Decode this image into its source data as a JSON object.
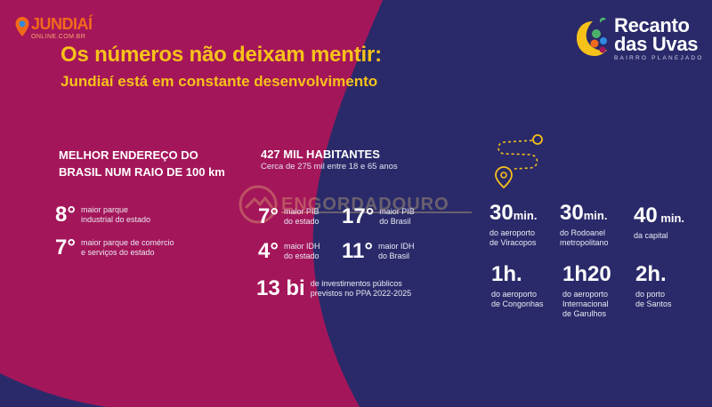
{
  "site_logo": {
    "name": "JUNDIAÍ",
    "sub": "ONLINE.COM.BR"
  },
  "title": "Os números não deixam mentir:",
  "subtitle": "Jundiaí está em constante desenvolvimento",
  "brand": {
    "line1": "Recanto",
    "line2": "das Uvas",
    "tagline": "BAIRRO PLANEJADO"
  },
  "watermark": "ENGORDADOURO",
  "colors": {
    "magenta": "#a4165a",
    "navy": "#2a2a6a",
    "gold": "#f6c21a",
    "orange": "#f26a1b"
  },
  "left": {
    "headline": "MELHOR ENDEREÇO DO BRASIL NUM RAIO DE 100 km",
    "stats": [
      {
        "rank": "8°",
        "desc_1": "maior parque",
        "desc_2": "industrial do estado"
      },
      {
        "rank": "7°",
        "desc_1": "maior parque de comércio",
        "desc_2": "e serviços do estado"
      }
    ]
  },
  "middle": {
    "headline": "427 MIL HABITANTES",
    "sub": "Cerca de 275 mil entre 18 e 65 anos",
    "stats": [
      {
        "rank": "7°",
        "desc_1": "maior PIB",
        "desc_2": "do estado"
      },
      {
        "rank": "17°",
        "desc_1": "maior PIB",
        "desc_2": "do Brasil"
      },
      {
        "rank": "4°",
        "desc_1": "maior IDH",
        "desc_2": "do estado"
      },
      {
        "rank": "11°",
        "desc_1": "maior IDH",
        "desc_2": "do Brasil"
      }
    ],
    "investment": {
      "value": "13 bi",
      "desc_1": "de investimentos públicos",
      "desc_2": "previstos no PPA 2022-2025"
    }
  },
  "right": {
    "times": [
      {
        "value": "30",
        "unit": "min.",
        "desc_1": "do aeroporto",
        "desc_2": "de Viracopos",
        "desc_3": ""
      },
      {
        "value": "30",
        "unit": "min.",
        "desc_1": "do Rodoanel",
        "desc_2": "metropolitano",
        "desc_3": ""
      },
      {
        "value": "40",
        "unit": " min.",
        "desc_1": "da capital",
        "desc_2": "",
        "desc_3": ""
      },
      {
        "value": "1h.",
        "unit": "",
        "desc_1": "do aeroporto",
        "desc_2": "de Congonhas",
        "desc_3": ""
      },
      {
        "value": "1h20",
        "unit": "",
        "desc_1": "do aeroporto",
        "desc_2": "Internacional",
        "desc_3": "de Garulhos"
      },
      {
        "value": "2h.",
        "unit": "",
        "desc_1": "do porto",
        "desc_2": "de Santos",
        "desc_3": ""
      }
    ]
  }
}
